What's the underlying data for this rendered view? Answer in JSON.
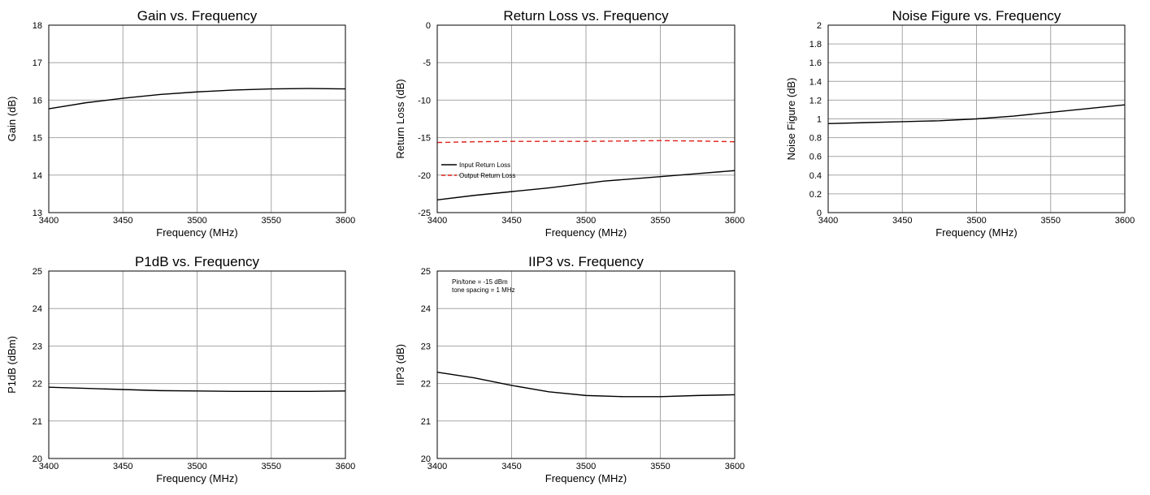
{
  "chart_data": [
    {
      "type": "line",
      "title": "Gain vs. Frequency",
      "xlabel": "Frequency (MHz)",
      "ylabel": "Gain (dB)",
      "xlim": [
        3400,
        3600
      ],
      "ylim": [
        13,
        18
      ],
      "xticks": [
        "3400",
        "3450",
        "3500",
        "3550",
        "3600"
      ],
      "yticks": [
        "13",
        "14",
        "15",
        "16",
        "17",
        "18"
      ],
      "grid": true,
      "series": [
        {
          "color": "#000000",
          "dash": "solid",
          "x": [
            3400,
            3425,
            3450,
            3475,
            3500,
            3525,
            3550,
            3575,
            3600
          ],
          "y": [
            15.77,
            15.93,
            16.05,
            16.15,
            16.22,
            16.27,
            16.3,
            16.31,
            16.3
          ]
        }
      ],
      "annotations": []
    },
    {
      "type": "line",
      "title": "Return Loss vs. Frequency",
      "xlabel": "Frequency (MHz)",
      "ylabel": "Return Loss (dB)",
      "xlim": [
        3400,
        3600
      ],
      "ylim": [
        -25,
        0
      ],
      "xticks": [
        "3400",
        "3450",
        "3500",
        "3550",
        "3600"
      ],
      "yticks": [
        "-25",
        "-20",
        "-15",
        "-10",
        "-5",
        "0"
      ],
      "grid": true,
      "legend_position": "bottom-left",
      "series": [
        {
          "name": "Input Return Loss",
          "color": "#000000",
          "dash": "solid",
          "x": [
            3400,
            3425,
            3450,
            3475,
            3500,
            3512,
            3525,
            3550,
            3575,
            3600
          ],
          "y": [
            -23.3,
            -22.7,
            -22.2,
            -21.7,
            -21.1,
            -20.8,
            -20.6,
            -20.2,
            -19.8,
            -19.4
          ]
        },
        {
          "name": "Output Return Loss",
          "color": "#e0201b",
          "dash": "dashed",
          "x": [
            3400,
            3425,
            3450,
            3475,
            3500,
            3525,
            3550,
            3575,
            3600
          ],
          "y": [
            -15.65,
            -15.55,
            -15.5,
            -15.5,
            -15.5,
            -15.45,
            -15.4,
            -15.45,
            -15.55
          ]
        }
      ],
      "annotations": []
    },
    {
      "type": "line",
      "title": "Noise Figure vs. Frequency",
      "xlabel": "Frequency (MHz)",
      "ylabel": "Noise Figure (dB)",
      "xlim": [
        3400,
        3600
      ],
      "ylim": [
        0,
        2
      ],
      "xticks": [
        "3400",
        "3450",
        "3500",
        "3550",
        "3600"
      ],
      "yticks": [
        "0",
        "0.2",
        "0.4",
        "0.6",
        "0.8",
        "1",
        "1.2",
        "1.4",
        "1.6",
        "1.8",
        "2"
      ],
      "grid": true,
      "series": [
        {
          "color": "#000000",
          "dash": "solid",
          "x": [
            3400,
            3425,
            3450,
            3475,
            3500,
            3525,
            3550,
            3575,
            3600
          ],
          "y": [
            0.95,
            0.96,
            0.97,
            0.98,
            1.0,
            1.03,
            1.07,
            1.11,
            1.15
          ]
        }
      ],
      "annotations": []
    },
    {
      "type": "line",
      "title": "P1dB vs. Frequency",
      "xlabel": "Frequency (MHz)",
      "ylabel": "P1dB (dBm)",
      "xlim": [
        3400,
        3600
      ],
      "ylim": [
        20,
        25
      ],
      "xticks": [
        "3400",
        "3450",
        "3500",
        "3550",
        "3600"
      ],
      "yticks": [
        "20",
        "21",
        "22",
        "23",
        "24",
        "25"
      ],
      "grid": true,
      "series": [
        {
          "color": "#000000",
          "dash": "solid",
          "x": [
            3400,
            3425,
            3450,
            3475,
            3500,
            3525,
            3550,
            3575,
            3600
          ],
          "y": [
            21.9,
            21.87,
            21.84,
            21.81,
            21.8,
            21.79,
            21.79,
            21.79,
            21.8
          ]
        }
      ],
      "annotations": []
    },
    {
      "type": "line",
      "title": "IIP3 vs. Frequency",
      "xlabel": "Frequency (MHz)",
      "ylabel": "IIP3 (dB)",
      "xlim": [
        3400,
        3600
      ],
      "ylim": [
        20,
        25
      ],
      "xticks": [
        "3400",
        "3450",
        "3500",
        "3550",
        "3600"
      ],
      "yticks": [
        "20",
        "21",
        "22",
        "23",
        "24",
        "25"
      ],
      "grid": true,
      "series": [
        {
          "color": "#000000",
          "dash": "solid",
          "x": [
            3400,
            3425,
            3450,
            3475,
            3500,
            3525,
            3550,
            3575,
            3600
          ],
          "y": [
            22.3,
            22.15,
            21.95,
            21.78,
            21.68,
            21.65,
            21.65,
            21.68,
            21.7
          ]
        }
      ],
      "annotations": [
        "Pin/tone = -15 dBm",
        "tone spacing = 1 MHz"
      ]
    }
  ]
}
